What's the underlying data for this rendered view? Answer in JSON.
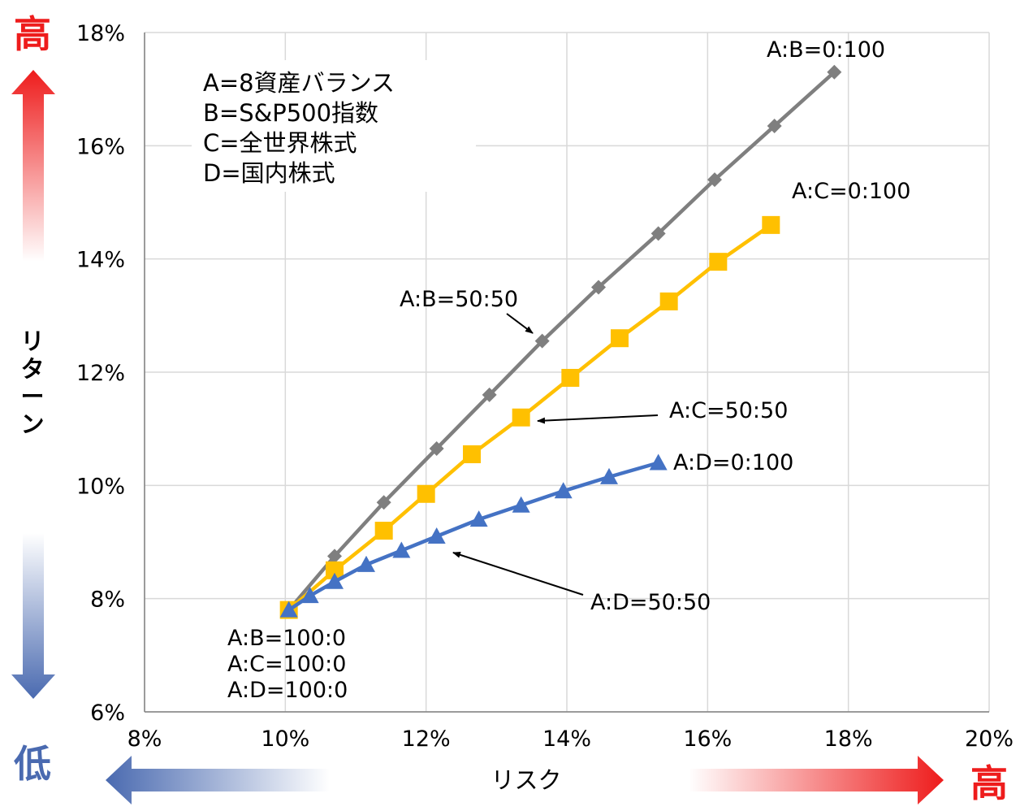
{
  "chart_data": {
    "type": "line",
    "title": "",
    "xlabel": "リスク",
    "ylabel": "リターン",
    "xlim": [
      8,
      20
    ],
    "ylim": [
      6,
      18
    ],
    "x_ticks": [
      "8%",
      "10%",
      "12%",
      "14%",
      "16%",
      "18%",
      "20%"
    ],
    "y_ticks": [
      "6%",
      "8%",
      "10%",
      "12%",
      "14%",
      "16%",
      "18%"
    ],
    "grid": true,
    "series": [
      {
        "marker": "diamond",
        "color": "#7f7f7f",
        "points": [
          [
            10.05,
            7.8
          ],
          [
            10.7,
            8.75
          ],
          [
            11.4,
            9.7
          ],
          [
            12.15,
            10.65
          ],
          [
            12.9,
            11.6
          ],
          [
            13.65,
            12.55
          ],
          [
            14.45,
            13.5
          ],
          [
            15.3,
            14.45
          ],
          [
            16.1,
            15.4
          ],
          [
            16.95,
            16.35
          ],
          [
            17.8,
            17.3
          ]
        ]
      },
      {
        "marker": "square",
        "color": "#ffc000",
        "points": [
          [
            10.05,
            7.8
          ],
          [
            10.7,
            8.5
          ],
          [
            11.4,
            9.2
          ],
          [
            12.0,
            9.85
          ],
          [
            12.65,
            10.55
          ],
          [
            13.35,
            11.2
          ],
          [
            14.05,
            11.9
          ],
          [
            14.75,
            12.6
          ],
          [
            15.45,
            13.25
          ],
          [
            16.15,
            13.95
          ],
          [
            16.9,
            14.6
          ]
        ]
      },
      {
        "marker": "triangle",
        "color": "#4472c4",
        "points": [
          [
            10.05,
            7.8
          ],
          [
            10.35,
            8.05
          ],
          [
            10.7,
            8.3
          ],
          [
            11.15,
            8.6
          ],
          [
            11.65,
            8.85
          ],
          [
            12.15,
            9.1
          ],
          [
            12.75,
            9.4
          ],
          [
            13.35,
            9.65
          ],
          [
            13.95,
            9.9
          ],
          [
            14.6,
            10.15
          ],
          [
            15.3,
            10.4
          ]
        ]
      }
    ],
    "legend_text": [
      "A=8資産バランス",
      "B=S&P500指数",
      "C=全世界株式",
      "D=国内株式"
    ],
    "annotations": [
      "A:B=0:100",
      "A:C=0:100",
      "A:B=50:50",
      "A:C=50:50",
      "A:D=0:100",
      "A:D=50:50",
      "A:B=100:0",
      "A:C=100:0",
      "A:D=100:0"
    ],
    "side_labels": {
      "high_top": "高",
      "low_bottom": "低",
      "high_right": "高"
    },
    "colors": {
      "high": "#ee1c1c",
      "low": "#4a6ab0",
      "gridline": "#d9d9d9",
      "axis": "#808080"
    }
  }
}
